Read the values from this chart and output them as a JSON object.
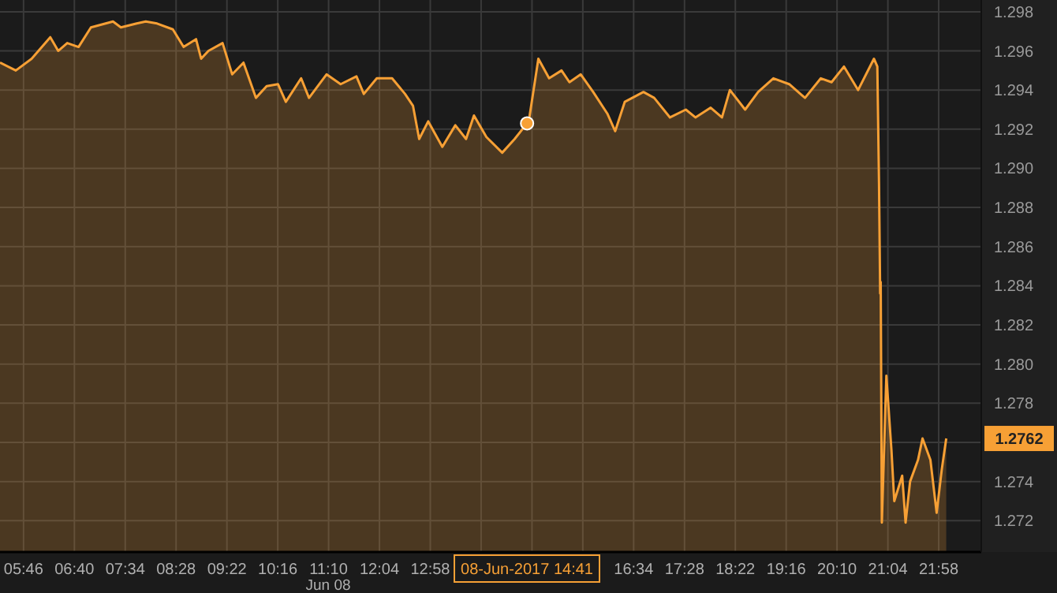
{
  "chart_data": {
    "type": "area",
    "xlim": [
      5.35,
      22.72
    ],
    "ylim": [
      1.2704,
      1.2986
    ],
    "xticks": [
      {
        "value": 5.7667,
        "label": "05:46"
      },
      {
        "value": 6.6667,
        "label": "06:40"
      },
      {
        "value": 7.5667,
        "label": "07:34"
      },
      {
        "value": 8.4667,
        "label": "08:28"
      },
      {
        "value": 9.3667,
        "label": "09:22"
      },
      {
        "value": 10.2667,
        "label": "10:16"
      },
      {
        "value": 11.1667,
        "label": "11:10"
      },
      {
        "value": 12.0667,
        "label": "12:04"
      },
      {
        "value": 12.9667,
        "label": "12:58"
      },
      {
        "value": 13.8667,
        "label": null
      },
      {
        "value": 14.7667,
        "label": null
      },
      {
        "value": 15.6667,
        "label": null
      },
      {
        "value": 16.5667,
        "label": "16:34"
      },
      {
        "value": 17.4667,
        "label": "17:28"
      },
      {
        "value": 18.3667,
        "label": "18:22"
      },
      {
        "value": 19.2667,
        "label": "19:16"
      },
      {
        "value": 20.1667,
        "label": "20:10"
      },
      {
        "value": 21.0667,
        "label": "21:04"
      },
      {
        "value": 21.9667,
        "label": "21:58"
      }
    ],
    "yticks": [
      1.272,
      1.274,
      {
        "value": 1.276,
        "label": null
      },
      1.278,
      {
        "value": 1.28,
        "label": "1.280"
      },
      1.282,
      1.284,
      1.286,
      1.288,
      {
        "value": 1.29,
        "label": "1.290"
      },
      1.292,
      1.294,
      1.296,
      1.298
    ],
    "grid": true,
    "annotations": [
      "08-Jun-2017 14:41",
      {
        "text": "1.2762",
        "y": 1.2762
      },
      "Jun 08"
    ],
    "series": [
      {
        "color": "#f7a035",
        "x": [
          5.35,
          5.63,
          5.91,
          6.24,
          6.38,
          6.54,
          6.74,
          6.96,
          7.35,
          7.49,
          7.77,
          7.93,
          8.13,
          8.41,
          8.6,
          8.82,
          8.91,
          9.04,
          9.29,
          9.46,
          9.66,
          9.88,
          10.07,
          10.27,
          10.41,
          10.68,
          10.82,
          11.13,
          11.38,
          11.66,
          11.79,
          12.02,
          12.29,
          12.52,
          12.66,
          12.77,
          12.93,
          13.18,
          13.41,
          13.6,
          13.74,
          13.96,
          14.24,
          14.46,
          14.68,
          14.71,
          14.88,
          15.07,
          15.29,
          15.43,
          15.63,
          15.85,
          16.1,
          16.24,
          16.41,
          16.74,
          16.93,
          17.21,
          17.49,
          17.66,
          17.93,
          18.13,
          18.27,
          18.54,
          18.77,
          19.04,
          19.32,
          19.6,
          19.88,
          20.07,
          20.29,
          20.54,
          20.82,
          20.88,
          20.91,
          20.93,
          20.94,
          20.96,
          21.04,
          21.13,
          21.18,
          21.32,
          21.38,
          21.46,
          21.6,
          21.68,
          21.82,
          21.93,
          22.02,
          22.1
        ],
        "values": [
          1.2954,
          1.295,
          1.2956,
          1.2967,
          1.296,
          1.2964,
          1.2962,
          1.2972,
          1.2975,
          1.2972,
          1.2974,
          1.2975,
          1.2974,
          1.2971,
          1.2962,
          1.2966,
          1.2956,
          1.296,
          1.2964,
          1.2948,
          1.2954,
          1.2936,
          1.2942,
          1.2943,
          1.2934,
          1.2946,
          1.2936,
          1.2948,
          1.2943,
          1.2947,
          1.2938,
          1.2946,
          1.2946,
          1.2938,
          1.2932,
          1.2915,
          1.2924,
          1.2911,
          1.2922,
          1.2915,
          1.2927,
          1.2916,
          1.2908,
          1.2915,
          1.2923,
          1.2924,
          1.2956,
          1.2946,
          1.295,
          1.2944,
          1.2948,
          1.2939,
          1.2928,
          1.2919,
          1.2934,
          1.2939,
          1.2936,
          1.2926,
          1.293,
          1.2926,
          1.2931,
          1.2926,
          1.294,
          1.293,
          1.2939,
          1.2946,
          1.2943,
          1.2936,
          1.2946,
          1.2944,
          1.2952,
          1.294,
          1.2956,
          1.2952,
          1.2892,
          1.2836,
          1.2842,
          1.2719,
          1.2794,
          1.2756,
          1.273,
          1.2743,
          1.2719,
          1.274,
          1.2751,
          1.2762,
          1.2751,
          1.2724,
          1.2746,
          1.2762
        ]
      }
    ]
  }
}
